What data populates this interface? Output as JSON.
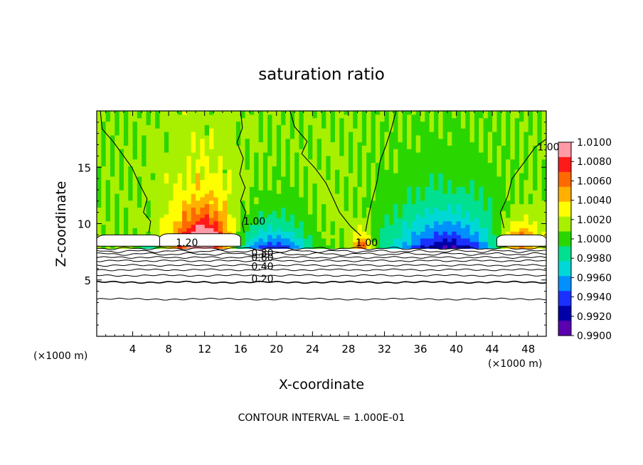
{
  "chart_data": {
    "type": "heatmap",
    "title": "saturation ratio",
    "xlabel": "X-coordinate",
    "ylabel": "Z-coordinate",
    "x_unit_left": "(×1000 m)",
    "x_unit_right": "(×1000 m)",
    "footer": "CONTOUR INTERVAL = 1.000E-01",
    "xlim": [
      0,
      50
    ],
    "ylim": [
      0,
      20
    ],
    "xticks": [
      4,
      8,
      12,
      16,
      20,
      24,
      28,
      32,
      36,
      40,
      44,
      48
    ],
    "yticks": [
      5,
      10,
      15
    ],
    "colorbar": {
      "labels": [
        "1.0100",
        "1.0080",
        "1.0060",
        "1.0040",
        "1.0020",
        "1.0000",
        "0.9980",
        "0.9960",
        "0.9940",
        "0.9920",
        "0.9900"
      ],
      "range": [
        0.99,
        1.01
      ],
      "colors": [
        "#ff9aa6",
        "#ff1a1a",
        "#ff6a00",
        "#ffb000",
        "#ffff00",
        "#a8f000",
        "#2ad600",
        "#00e090",
        "#00d8d8",
        "#0090ff",
        "#1a30ff",
        "#0000a8",
        "#5a00b0"
      ]
    },
    "contour_labels": [
      {
        "text": "1.20",
        "x": 8.8,
        "z": 8.0
      },
      {
        "text": "1.00",
        "x": 16.3,
        "z": 9.9
      },
      {
        "text": "0.80",
        "x": 17.2,
        "z": 7.1
      },
      {
        "text": "0.60",
        "x": 17.2,
        "z": 6.7
      },
      {
        "text": "0.40",
        "x": 17.2,
        "z": 5.9
      },
      {
        "text": "0.20",
        "x": 17.2,
        "z": 4.8
      },
      {
        "text": "1.00",
        "x": 28.8,
        "z": 8.0
      },
      {
        "text": "1.00",
        "x": 49.0,
        "z": 16.5
      }
    ],
    "contour_levels": [
      0.1,
      0.2,
      0.3,
      0.4,
      0.5,
      0.6,
      0.7,
      0.8,
      0.9,
      1.0,
      1.1,
      1.2
    ],
    "features": {
      "low_level_stable_band_top_z": 7.8,
      "supersaturated_plumes_x": [
        11.5,
        29.5,
        47.0
      ],
      "subsaturated_troughs_x": [
        20.0,
        39.0
      ]
    }
  }
}
